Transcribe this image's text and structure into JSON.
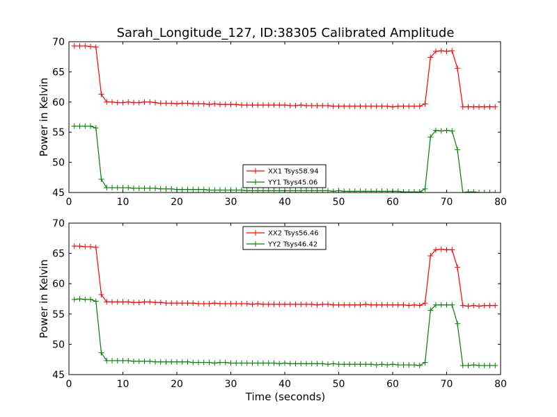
{
  "figure": {
    "title": "Sarah_Longitude_127, ID:38305 Calibrated Amplitude",
    "xlabel": "Time (seconds)"
  },
  "chart_data": [
    {
      "type": "line",
      "title": "Sarah_Longitude_127, ID:38305 Calibrated Amplitude",
      "xlabel": "",
      "ylabel": "Power in Kelvin",
      "xlim": [
        0,
        80
      ],
      "ylim": [
        45,
        70
      ],
      "xticks": [
        0,
        10,
        20,
        30,
        40,
        50,
        60,
        70,
        80
      ],
      "yticks": [
        45,
        50,
        55,
        60,
        65,
        70
      ],
      "grid": false,
      "legend_position": "lower-center",
      "x": [
        1,
        2,
        3,
        4,
        5,
        6,
        7,
        8,
        9,
        10,
        11,
        12,
        13,
        14,
        15,
        16,
        17,
        18,
        19,
        20,
        21,
        22,
        23,
        24,
        25,
        26,
        27,
        28,
        29,
        30,
        31,
        32,
        33,
        34,
        35,
        36,
        37,
        38,
        39,
        40,
        41,
        42,
        43,
        44,
        45,
        46,
        47,
        48,
        49,
        50,
        51,
        52,
        53,
        54,
        55,
        56,
        57,
        58,
        59,
        60,
        61,
        62,
        63,
        64,
        65,
        66,
        67,
        68,
        69,
        70,
        71,
        72,
        73,
        74,
        75,
        76,
        77,
        78,
        79
      ],
      "series": [
        {
          "name": "XX1 Tsys58.94",
          "color": "#ff0000",
          "values": [
            69.3,
            69.3,
            69.3,
            69.2,
            69.1,
            61.3,
            60.0,
            60.0,
            59.9,
            59.9,
            60.0,
            59.9,
            59.9,
            60.0,
            60.0,
            59.9,
            59.8,
            59.8,
            59.8,
            59.7,
            59.8,
            59.8,
            59.7,
            59.7,
            59.7,
            59.6,
            59.7,
            59.6,
            59.6,
            59.6,
            59.6,
            59.5,
            59.5,
            59.5,
            59.5,
            59.5,
            59.5,
            59.5,
            59.5,
            59.5,
            59.4,
            59.4,
            59.5,
            59.4,
            59.4,
            59.4,
            59.4,
            59.4,
            59.3,
            59.3,
            59.3,
            59.3,
            59.3,
            59.3,
            59.3,
            59.3,
            59.3,
            59.3,
            59.3,
            59.2,
            59.3,
            59.3,
            59.3,
            59.3,
            59.3,
            59.7,
            67.4,
            68.4,
            68.5,
            68.4,
            68.5,
            65.6,
            59.2,
            59.2,
            59.2,
            59.2,
            59.2,
            59.2,
            59.2
          ]
        },
        {
          "name": "YY1 Tsys45.06",
          "color": "#008000",
          "values": [
            56.0,
            56.0,
            56.0,
            56.0,
            55.7,
            47.2,
            45.8,
            45.8,
            45.8,
            45.8,
            45.8,
            45.7,
            45.7,
            45.7,
            45.7,
            45.7,
            45.6,
            45.6,
            45.6,
            45.5,
            45.5,
            45.5,
            45.5,
            45.5,
            45.5,
            45.4,
            45.4,
            45.4,
            45.4,
            45.4,
            45.4,
            45.4,
            45.3,
            45.3,
            45.3,
            45.3,
            45.3,
            45.3,
            45.3,
            45.3,
            45.3,
            45.3,
            45.3,
            45.3,
            45.3,
            45.3,
            45.3,
            45.3,
            45.2,
            45.3,
            45.2,
            45.2,
            45.2,
            45.2,
            45.2,
            45.2,
            45.2,
            45.2,
            45.2,
            45.2,
            45.2,
            45.1,
            45.1,
            45.1,
            45.1,
            45.6,
            54.2,
            55.3,
            55.2,
            55.3,
            55.2,
            52.1,
            45.0,
            45.1,
            45.1,
            45.0,
            45.0,
            45.0,
            45.0
          ]
        }
      ]
    },
    {
      "type": "line",
      "title": "",
      "xlabel": "Time (seconds)",
      "ylabel": "Power in Kelvin",
      "xlim": [
        0,
        80
      ],
      "ylim": [
        45,
        70
      ],
      "xticks": [
        0,
        10,
        20,
        30,
        40,
        50,
        60,
        70,
        80
      ],
      "yticks": [
        45,
        50,
        55,
        60,
        65,
        70
      ],
      "grid": false,
      "legend_position": "upper-center",
      "x": [
        1,
        2,
        3,
        4,
        5,
        6,
        7,
        8,
        9,
        10,
        11,
        12,
        13,
        14,
        15,
        16,
        17,
        18,
        19,
        20,
        21,
        22,
        23,
        24,
        25,
        26,
        27,
        28,
        29,
        30,
        31,
        32,
        33,
        34,
        35,
        36,
        37,
        38,
        39,
        40,
        41,
        42,
        43,
        44,
        45,
        46,
        47,
        48,
        49,
        50,
        51,
        52,
        53,
        54,
        55,
        56,
        57,
        58,
        59,
        60,
        61,
        62,
        63,
        64,
        65,
        66,
        67,
        68,
        69,
        70,
        71,
        72,
        73,
        74,
        75,
        76,
        77,
        78,
        79
      ],
      "series": [
        {
          "name": "XX2 Tsys56.46",
          "color": "#ff0000",
          "values": [
            66.2,
            66.2,
            66.1,
            66.1,
            66.0,
            58.2,
            57.0,
            57.0,
            57.0,
            57.0,
            57.0,
            56.9,
            56.9,
            57.0,
            57.0,
            56.9,
            56.9,
            56.8,
            56.8,
            56.8,
            56.8,
            56.8,
            56.8,
            56.7,
            56.7,
            56.7,
            56.8,
            56.7,
            56.7,
            56.7,
            56.7,
            56.7,
            56.7,
            56.6,
            56.7,
            56.6,
            56.6,
            56.6,
            56.6,
            56.6,
            56.6,
            56.6,
            56.6,
            56.6,
            56.6,
            56.5,
            56.6,
            56.6,
            56.5,
            56.5,
            56.5,
            56.5,
            56.5,
            56.5,
            56.6,
            56.5,
            56.5,
            56.5,
            56.5,
            56.5,
            56.5,
            56.5,
            56.4,
            56.5,
            56.4,
            56.8,
            64.6,
            65.6,
            65.7,
            65.6,
            65.6,
            62.7,
            56.4,
            56.3,
            56.4,
            56.3,
            56.4,
            56.4,
            56.4
          ]
        },
        {
          "name": "YY2 Tsys46.42",
          "color": "#008000",
          "values": [
            57.4,
            57.5,
            57.4,
            57.4,
            57.1,
            48.6,
            47.3,
            47.3,
            47.3,
            47.3,
            47.3,
            47.2,
            47.2,
            47.2,
            47.2,
            47.1,
            47.1,
            47.1,
            47.1,
            47.1,
            47.1,
            47.1,
            47.0,
            47.0,
            47.0,
            47.0,
            46.9,
            47.0,
            47.0,
            46.9,
            46.9,
            46.9,
            46.9,
            46.9,
            46.9,
            46.9,
            46.9,
            46.9,
            46.8,
            46.9,
            46.8,
            46.8,
            46.8,
            46.8,
            46.8,
            46.8,
            46.8,
            46.7,
            46.8,
            46.7,
            46.7,
            46.7,
            46.7,
            46.7,
            46.7,
            46.7,
            46.6,
            46.7,
            46.6,
            46.7,
            46.6,
            46.6,
            46.6,
            46.6,
            46.5,
            47.0,
            55.6,
            56.5,
            56.5,
            56.5,
            56.5,
            53.4,
            46.5,
            46.5,
            46.6,
            46.5,
            46.5,
            46.5,
            46.5
          ]
        }
      ]
    }
  ]
}
